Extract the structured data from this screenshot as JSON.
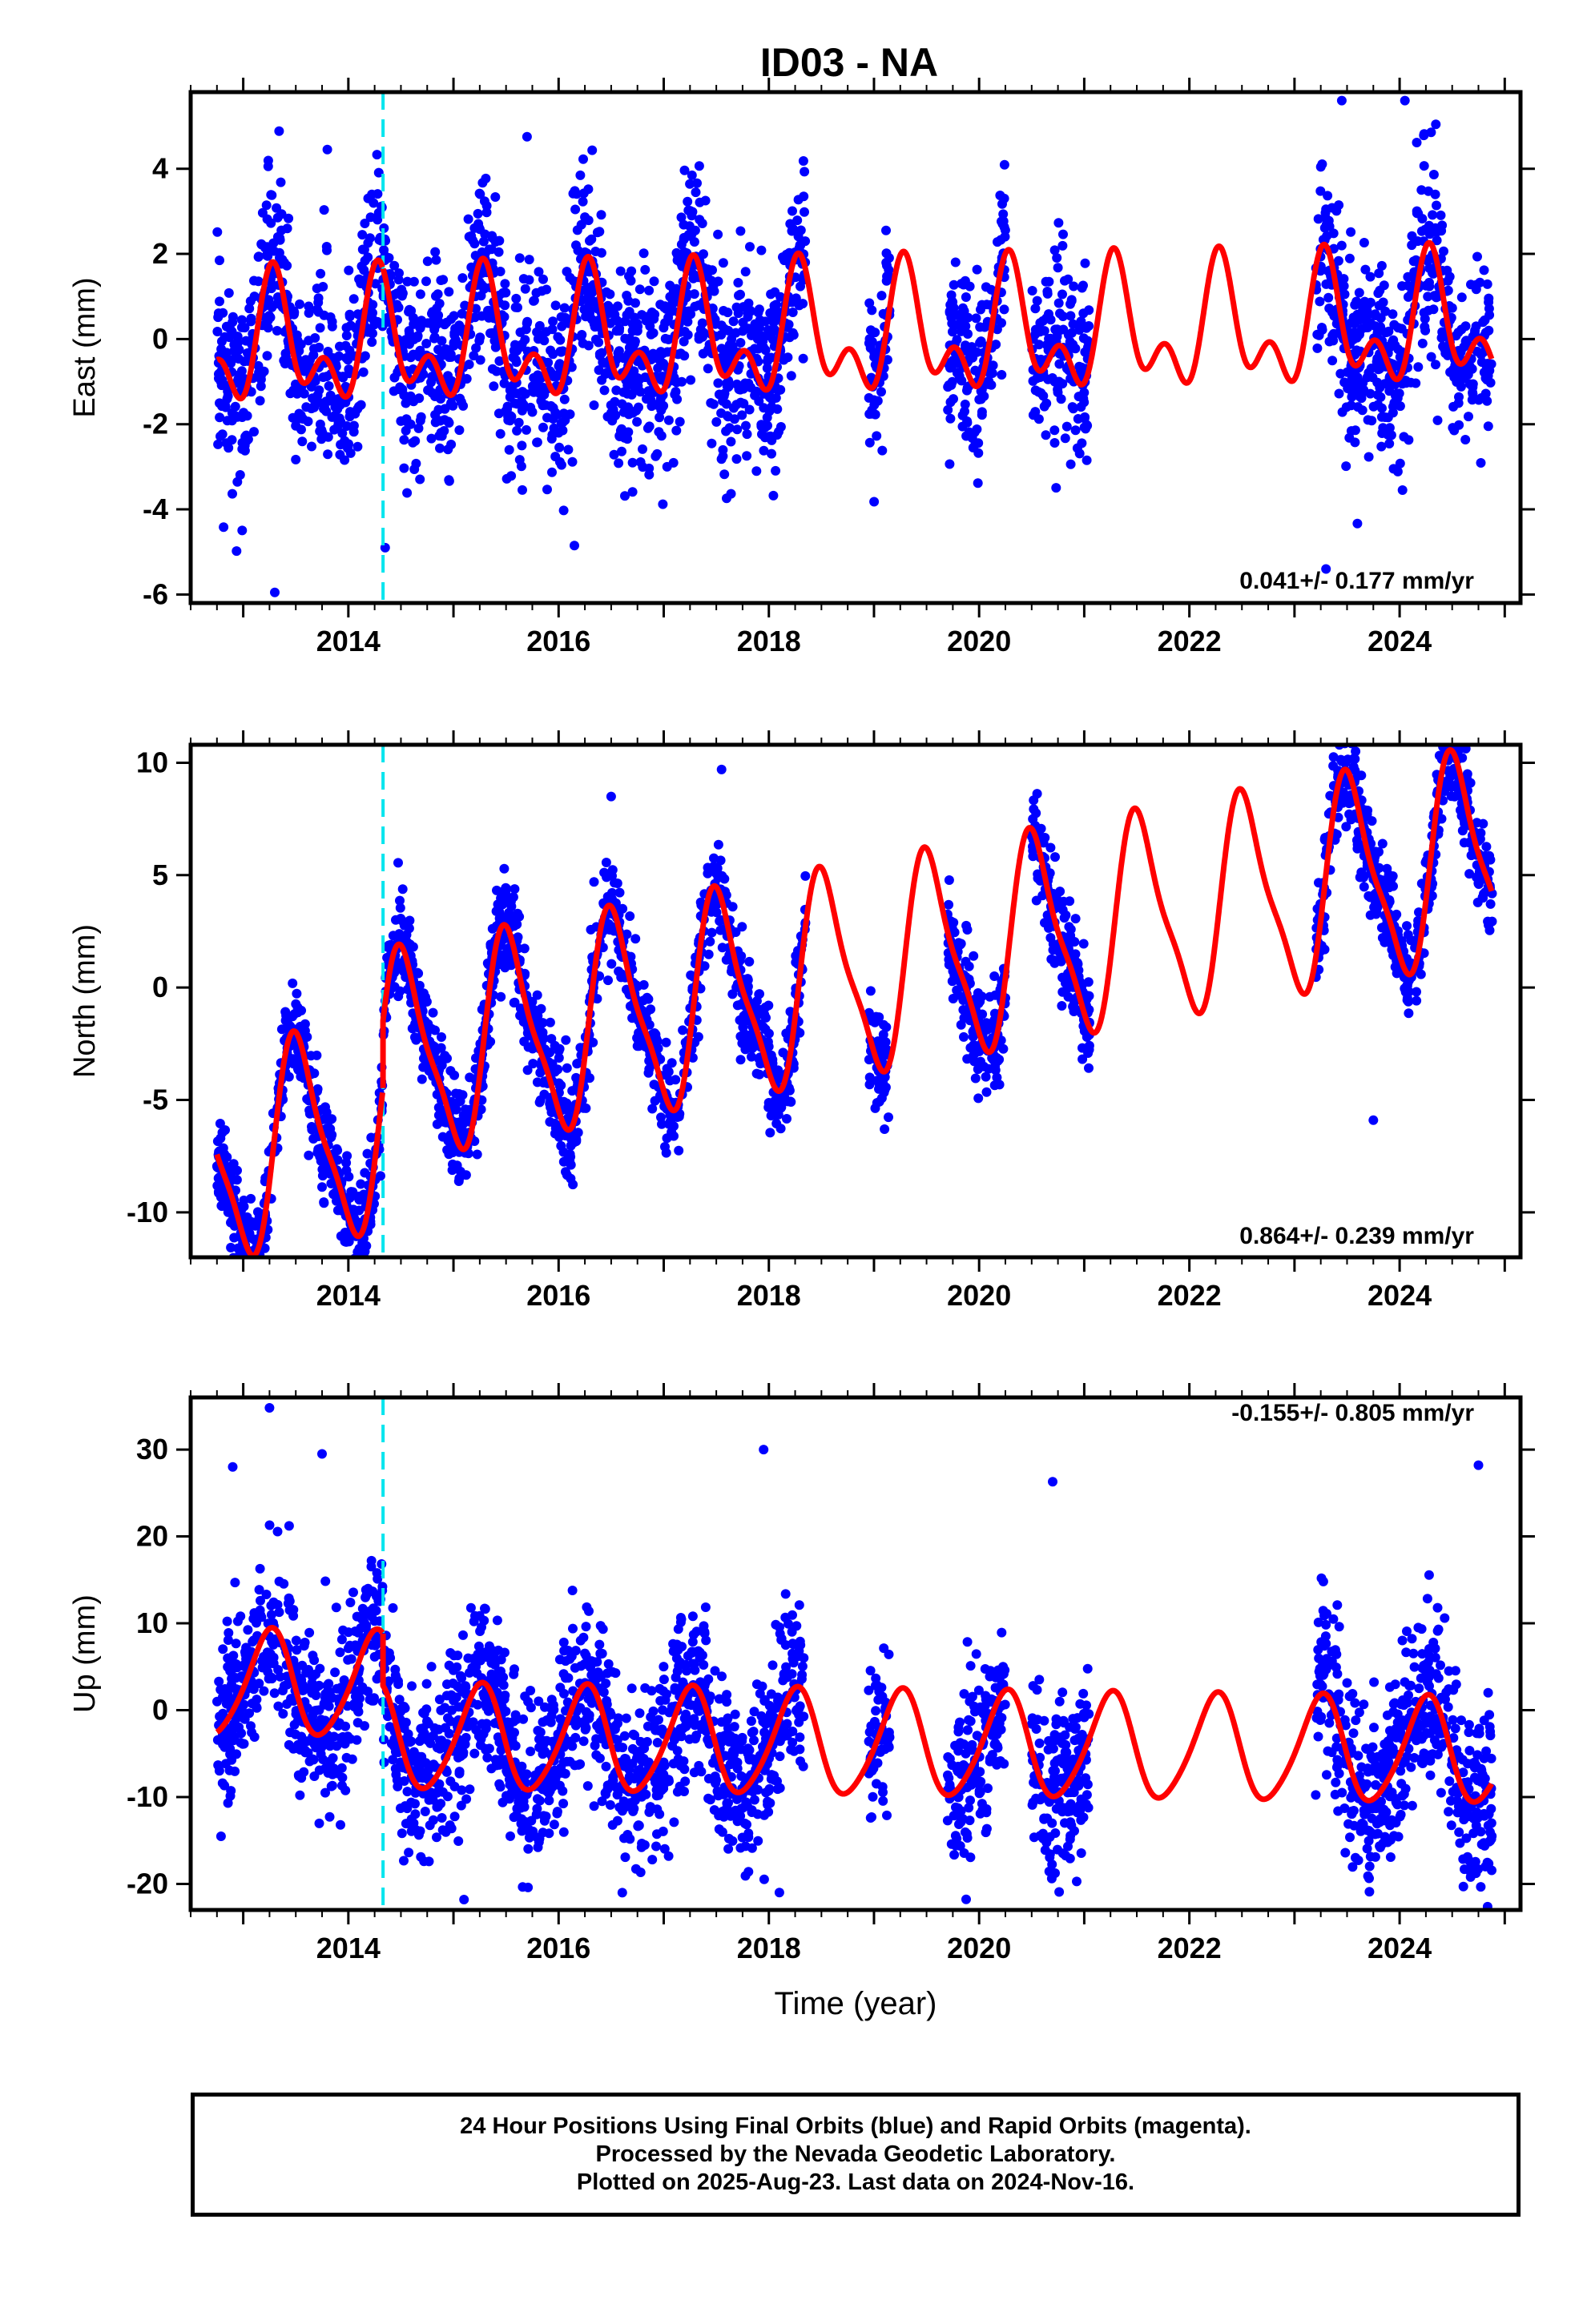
{
  "title": "ID03 - NA",
  "footer": {
    "line1": "24 Hour Positions Using Final Orbits (blue) and Rapid Orbits (magenta).",
    "line2": "Processed by the Nevada Geodetic Laboratory.",
    "line3": "Plotted on 2025-Aug-23. Last data on 2024-Nov-16."
  },
  "chart_data": [
    {
      "type": "scatter",
      "component": "east",
      "ylabel": "East (mm)",
      "xlabel": "",
      "rate_text": "0.041+/- 0.177 mm/yr",
      "xlim": [
        2012.5,
        2025.15
      ],
      "ylim": [
        -6.2,
        5.8
      ],
      "xticks": [
        2014,
        2016,
        2018,
        2020,
        2022,
        2024
      ],
      "yticks": [
        -6,
        -4,
        -2,
        0,
        2,
        4
      ],
      "equipment_change": 2014.33,
      "colors": {
        "points": "#0000ff",
        "model": "#ff0000",
        "equipment": "#00e5ee"
      },
      "data_spans": [
        [
          2012.75,
          2018.35
        ],
        [
          2018.95,
          2019.15
        ],
        [
          2019.7,
          2020.25
        ],
        [
          2020.5,
          2021.05
        ],
        [
          2023.2,
          2024.88
        ]
      ],
      "model": {
        "trend": 0.041,
        "offset": -0.2,
        "a1": 1.15,
        "p1": 0.05,
        "a2": 0.85,
        "p2": 0.15,
        "step": 0.0
      },
      "noise": 1.1,
      "outliers": [
        [
          2013.3,
          -5.95
        ],
        [
          2014.35,
          -4.9
        ],
        [
          2016.15,
          -4.85
        ],
        [
          2023.45,
          5.6
        ],
        [
          2024.05,
          5.6
        ],
        [
          2023.3,
          -5.4
        ],
        [
          2013.8,
          4.45
        ],
        [
          2015.7,
          4.75
        ]
      ]
    },
    {
      "type": "scatter",
      "component": "north",
      "ylabel": "North (mm)",
      "xlabel": "",
      "rate_text": "0.864+/- 0.239 mm/yr",
      "xlim": [
        2012.5,
        2025.15
      ],
      "ylim": [
        -12,
        10.8
      ],
      "xticks": [
        2014,
        2016,
        2018,
        2020,
        2022,
        2024
      ],
      "yticks": [
        -10,
        -5,
        0,
        5,
        10
      ],
      "equipment_change": 2014.33,
      "colors": {
        "points": "#0000ff",
        "model": "#ff0000",
        "equipment": "#00e5ee"
      },
      "data_spans": [
        [
          2012.75,
          2018.35
        ],
        [
          2018.95,
          2019.15
        ],
        [
          2019.7,
          2020.25
        ],
        [
          2020.5,
          2021.05
        ],
        [
          2023.2,
          2024.88
        ]
      ],
      "model": {
        "trend": 0.864,
        "offset": -7.6,
        "a1": 4.4,
        "p1": 0.28,
        "a2": 1.1,
        "p2": 0.3,
        "step": 3.0
      },
      "noise": 1.1,
      "outliers": [
        [
          2012.95,
          -11.6
        ],
        [
          2013.9,
          -9.5
        ],
        [
          2016.5,
          8.5
        ],
        [
          2017.55,
          9.7
        ],
        [
          2024.55,
          9.0
        ],
        [
          2023.75,
          -5.9
        ],
        [
          2019.1,
          -6.3
        ]
      ]
    },
    {
      "type": "scatter",
      "component": "up",
      "ylabel": "Up (mm)",
      "xlabel": "Time (year)",
      "rate_text": "-0.155+/- 0.805 mm/yr",
      "xlim": [
        2012.5,
        2025.15
      ],
      "ylim": [
        -23,
        36
      ],
      "xticks": [
        2014,
        2016,
        2018,
        2020,
        2022,
        2024
      ],
      "yticks": [
        -20,
        -10,
        0,
        10,
        20,
        30
      ],
      "equipment_change": 2014.33,
      "colors": {
        "points": "#0000ff",
        "model": "#ff0000",
        "equipment": "#00e5ee"
      },
      "data_spans": [
        [
          2012.75,
          2018.35
        ],
        [
          2018.95,
          2019.15
        ],
        [
          2019.7,
          2020.25
        ],
        [
          2020.5,
          2021.05
        ],
        [
          2023.2,
          2024.88
        ]
      ],
      "model": {
        "trend": -0.155,
        "offset": 3.0,
        "a1": 6.0,
        "p1": 0.0,
        "a2": 0.8,
        "p2": 0.2,
        "step": -6.0
      },
      "noise": 4.8,
      "outliers": [
        [
          2013.25,
          34.8
        ],
        [
          2013.75,
          29.5
        ],
        [
          2017.95,
          30.0
        ],
        [
          2024.75,
          28.2
        ],
        [
          2015.1,
          -21.8
        ],
        [
          2018.1,
          -21.0
        ],
        [
          2020.7,
          26.3
        ],
        [
          2012.9,
          28.0
        ]
      ]
    }
  ]
}
